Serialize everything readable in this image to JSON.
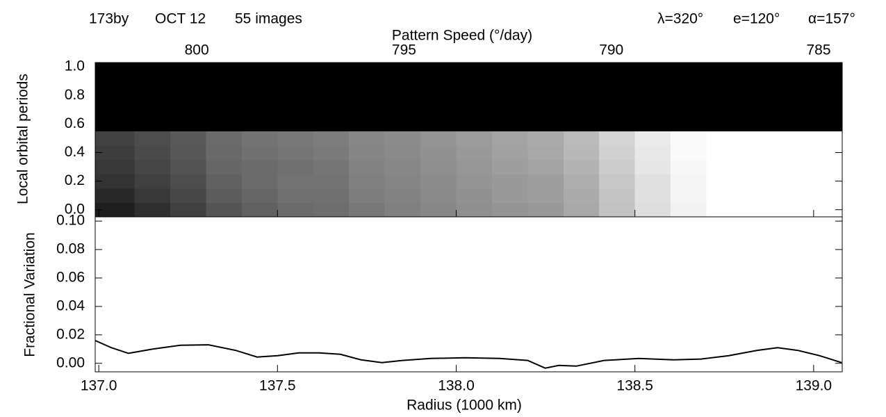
{
  "chart_data": [
    {
      "type": "heatmap",
      "annotations": [
        "173by",
        "OCT 12",
        "55 images",
        "λ=320°",
        "e=120°",
        "α=157°"
      ],
      "x2label": "Pattern Speed (°/day)",
      "ylabel": "Local orbital periods",
      "xlim": [
        136.99,
        139.08
      ],
      "x2lim": [
        802.45,
        784.43
      ],
      "x2ticks": [
        800,
        795,
        790,
        785
      ],
      "ylim": [
        -0.05,
        1.03
      ],
      "yticks": [
        {
          "value": 0,
          "label": "0.0"
        },
        {
          "value": 0.2,
          "label": "0.2"
        },
        {
          "value": 0.4,
          "label": "0.4"
        },
        {
          "value": 0.6,
          "label": "0.6"
        },
        {
          "value": 0.8,
          "label": "0.8"
        },
        {
          "value": 1,
          "label": "1.0"
        }
      ],
      "x_bins": [
        136.99,
        137.1,
        137.2,
        137.3,
        137.4,
        137.5,
        137.6,
        137.7,
        137.8,
        137.9,
        138.0,
        138.1,
        138.2,
        138.3,
        138.4,
        138.5,
        138.6,
        138.7,
        138.8,
        138.9,
        139.0,
        139.08
      ],
      "y_bins": [
        -0.05,
        0.05,
        0.15,
        0.25,
        0.35,
        0.45,
        0.55,
        1.03
      ],
      "z": [
        [
          0.12,
          0.18,
          0.25,
          0.33,
          0.38,
          0.42,
          0.43,
          0.47,
          0.5,
          0.53,
          0.56,
          0.58,
          0.6,
          0.66,
          0.76,
          0.87,
          0.95,
          1,
          1,
          1,
          1
        ],
        [
          0.16,
          0.22,
          0.28,
          0.36,
          0.4,
          0.44,
          0.44,
          0.49,
          0.51,
          0.54,
          0.57,
          0.6,
          0.62,
          0.67,
          0.77,
          0.88,
          0.96,
          1,
          1,
          1,
          1
        ],
        [
          0.2,
          0.25,
          0.3,
          0.38,
          0.42,
          0.45,
          0.45,
          0.5,
          0.52,
          0.55,
          0.58,
          0.6,
          0.62,
          0.68,
          0.78,
          0.88,
          0.96,
          1,
          1,
          1,
          1
        ],
        [
          0.22,
          0.27,
          0.32,
          0.4,
          0.42,
          0.44,
          0.46,
          0.51,
          0.53,
          0.56,
          0.59,
          0.62,
          0.64,
          0.7,
          0.8,
          0.9,
          0.97,
          1,
          1,
          1,
          1
        ],
        [
          0.24,
          0.29,
          0.34,
          0.41,
          0.44,
          0.46,
          0.48,
          0.52,
          0.54,
          0.57,
          0.6,
          0.63,
          0.66,
          0.72,
          0.82,
          0.91,
          0.98,
          1,
          1,
          1,
          1
        ],
        [
          0.26,
          0.3,
          0.35,
          0.42,
          0.45,
          0.47,
          0.49,
          0.53,
          0.55,
          0.58,
          0.61,
          0.64,
          0.67,
          0.73,
          0.83,
          0.92,
          0.98,
          1,
          1,
          1,
          1
        ],
        [
          0,
          0,
          0,
          0,
          0,
          0,
          0,
          0,
          0,
          0,
          0,
          0,
          0,
          0,
          0,
          0,
          0,
          0,
          0,
          0,
          0
        ]
      ]
    },
    {
      "type": "line",
      "xlabel": "Radius (1000 km)",
      "ylabel": "Fractional Variation",
      "color": "#000000",
      "xlim": [
        136.99,
        139.08
      ],
      "xticks": [
        {
          "value": 137,
          "label": "137.0"
        },
        137.5,
        {
          "value": 138,
          "label": "138.0"
        },
        138.5,
        {
          "value": 139,
          "label": "139.0"
        }
      ],
      "ylim": [
        -0.006,
        0.103
      ],
      "yticks": [
        {
          "value": 0,
          "label": "0.00"
        },
        {
          "value": 0.02,
          "label": "0.02"
        },
        {
          "value": 0.04,
          "label": "0.04"
        },
        {
          "value": 0.06,
          "label": "0.06"
        },
        {
          "value": 0.08,
          "label": "0.08"
        },
        {
          "value": 0.1,
          "label": "0.10"
        }
      ],
      "x": [
        136.99,
        137.035,
        137.083,
        137.151,
        137.229,
        137.307,
        137.384,
        137.443,
        137.501,
        137.559,
        137.617,
        137.676,
        137.734,
        137.792,
        137.85,
        137.928,
        138.025,
        138.122,
        138.2,
        138.249,
        138.287,
        138.336,
        138.414,
        138.511,
        138.608,
        138.685,
        138.763,
        138.841,
        138.899,
        138.957,
        139.016,
        139.078
      ],
      "values": [
        0.016,
        0.011,
        0.007,
        0.01,
        0.0127,
        0.013,
        0.009,
        0.0044,
        0.0054,
        0.0073,
        0.0073,
        0.0063,
        0.0024,
        0.0005,
        0.002,
        0.0034,
        0.0039,
        0.0034,
        0.002,
        -0.0034,
        -0.0015,
        -0.002,
        0.002,
        0.0034,
        0.0024,
        0.003,
        0.0054,
        0.009,
        0.011,
        0.009,
        0.0054,
        0.0005
      ]
    }
  ]
}
